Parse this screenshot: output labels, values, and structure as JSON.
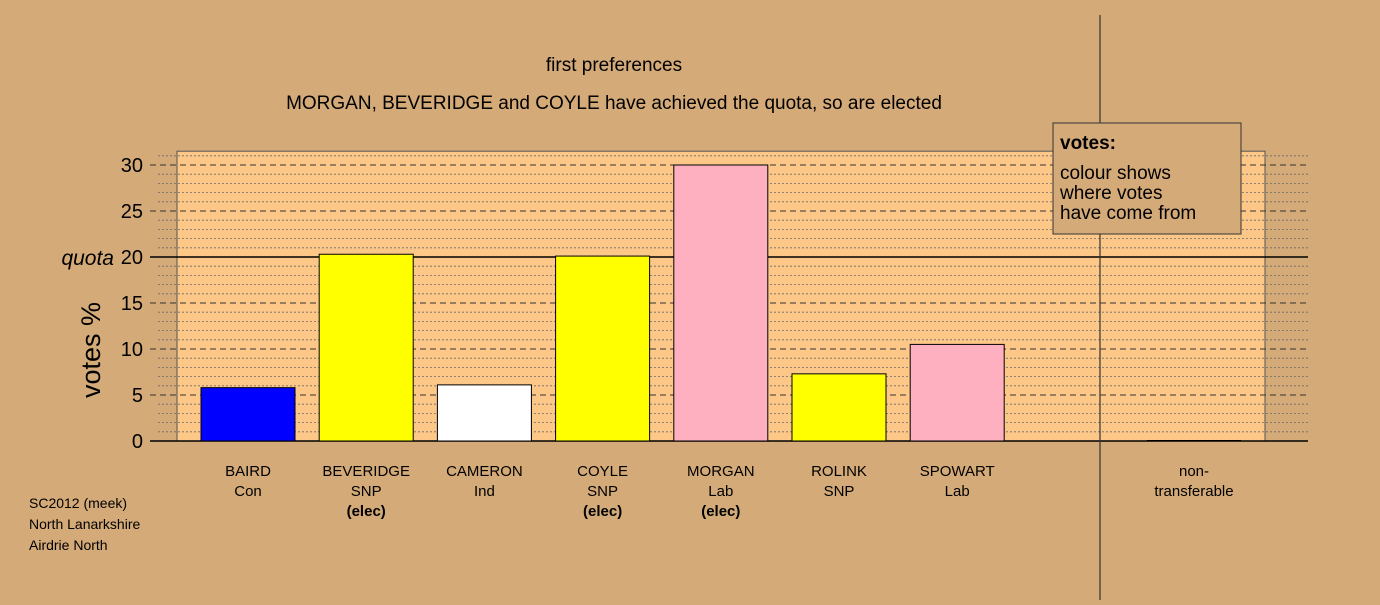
{
  "chart_data": {
    "type": "bar",
    "title": "first preferences",
    "subtitle": "MORGAN, BEVERIDGE and COYLE have achieved the quota, so are elected",
    "ylabel": "votes %",
    "ylim": [
      0,
      31.5
    ],
    "yticks": [
      0,
      5,
      10,
      15,
      20,
      25,
      30
    ],
    "quota": 20,
    "quota_label": "quota",
    "categories": [
      {
        "name": "BAIRD",
        "party": "Con",
        "status": "",
        "value": 5.8,
        "color": "#0000ff"
      },
      {
        "name": "BEVERIDGE",
        "party": "SNP",
        "status": "(elec)",
        "value": 20.3,
        "color": "#ffff00"
      },
      {
        "name": "CAMERON",
        "party": "Ind",
        "status": "",
        "value": 6.1,
        "color": "#ffffff"
      },
      {
        "name": "COYLE",
        "party": "SNP",
        "status": "(elec)",
        "value": 20.1,
        "color": "#ffff00"
      },
      {
        "name": "MORGAN",
        "party": "Lab",
        "status": "(elec)",
        "value": 30.0,
        "color": "#ffb0c0"
      },
      {
        "name": "ROLINK",
        "party": "SNP",
        "status": "",
        "value": 7.3,
        "color": "#ffff00"
      },
      {
        "name": "SPOWART",
        "party": "Lab",
        "status": "",
        "value": 10.5,
        "color": "#ffb0c0"
      }
    ],
    "nontransferable": {
      "label_line1": "non-",
      "label_line2": "transferable",
      "value": 0
    },
    "grid": true,
    "legend": {
      "title": "votes:",
      "lines": [
        "colour shows",
        "where votes",
        "have come from"
      ],
      "placement": "top-right"
    }
  },
  "footer": {
    "line1": "SC2012 (meek)",
    "line2": "North Lanarkshire",
    "line3": "Airdrie North"
  },
  "colors": {
    "background": "#d4aa78",
    "plot_background": "#fdc788",
    "legend_background": "#d4aa78"
  }
}
